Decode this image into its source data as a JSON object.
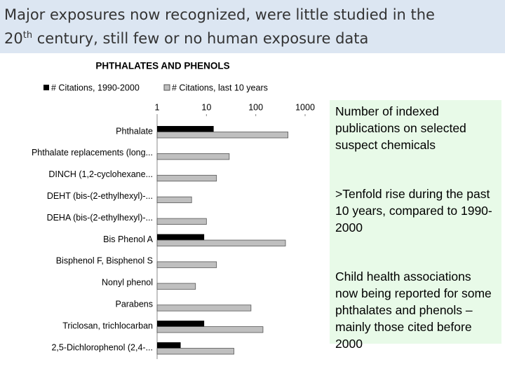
{
  "slide_title": {
    "line1": "Major exposures now recognized, were little studied in the",
    "line2_start": "20",
    "superscript": "th",
    "line2_end": " century, still few or no human exposure data"
  },
  "notes": [
    "Number of indexed publications on selected suspect chemicals",
    ">Tenfold rise during the past 10 years, compared to 1990-2000",
    "Child health associations now being reported for some phthalates and phenols – mainly those cited before 2000"
  ],
  "chart_data": {
    "type": "bar",
    "orientation": "horizontal",
    "title": "PHTHALATES AND PHENOLS",
    "categories": [
      "Phthalate",
      "Phthalate replacements (long...",
      "DINCH (1,2-cyclohexane...",
      "DEHT (bis-(2-ethylhexyl)-...",
      "DEHA (bis-(2-ethylhexyl)-...",
      "Bis Phenol A",
      "Bisphenol F,   Bisphenol S",
      "Nonyl phenol",
      "Parabens",
      "Triclosan, trichlocarban",
      "2,5-Dichlorophenol (2,4-..."
    ],
    "series": [
      {
        "name": "# Citations, 1990-2000",
        "color": "#000000",
        "values": [
          14,
          null,
          null,
          null,
          null,
          9,
          null,
          null,
          null,
          9,
          3
        ]
      },
      {
        "name": "# Citations, last 10 years",
        "color": "#bfbfbf",
        "values": [
          450,
          29,
          16,
          5,
          10,
          400,
          16,
          6,
          80,
          140,
          36
        ]
      }
    ],
    "xlim": [
      1,
      1000
    ],
    "xticks": [
      1,
      10,
      100,
      1000
    ],
    "log_scale": true,
    "grid": false,
    "legend": "top"
  }
}
